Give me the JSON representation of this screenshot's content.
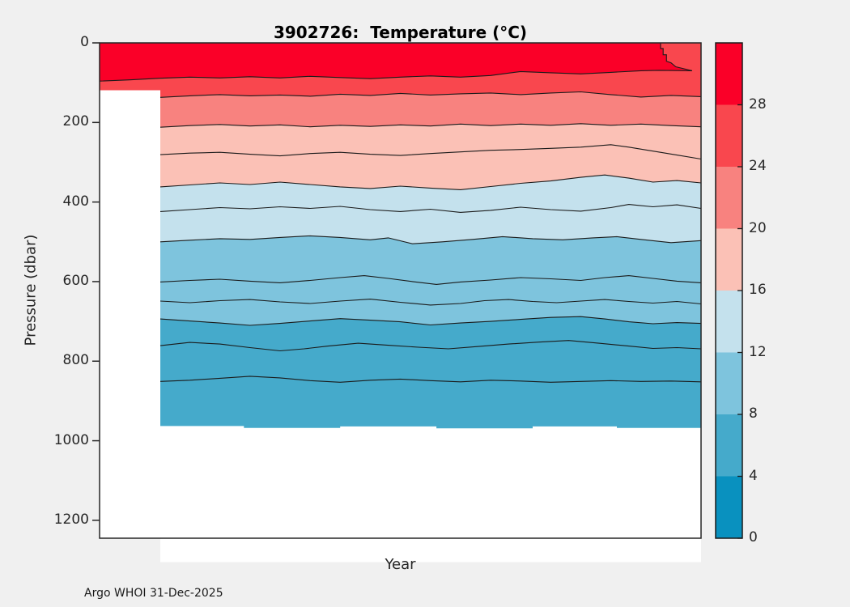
{
  "figure": {
    "background": "#f0f0f0",
    "title": "3902726:  Temperature (°C)",
    "footer": "Argo WHOI 31-Dec-2025"
  },
  "chart_data": {
    "type": "heatmap",
    "subtype": "filled_contour_time_depth_section",
    "title": "3902726:  Temperature (°C)",
    "xlabel": "Year",
    "ylabel": "Pressure (dbar)",
    "x_axis": {
      "tick_labels": []
    },
    "y_axis": {
      "ticks": [
        0,
        200,
        400,
        600,
        800,
        1000,
        1200
      ],
      "range_dbar": [
        0,
        1245
      ]
    },
    "colorbar": {
      "tick_labels": [
        "28",
        "24",
        "20",
        "16",
        "12",
        "8",
        "4",
        "0"
      ],
      "band_colors_top_to_bottom": [
        "#FA0028",
        "#F9474E",
        "#F8827F",
        "#FBC1B6",
        "#C4E1ED",
        "#7EC4DD",
        "#45AACB",
        "#0991BF"
      ],
      "level_step_c": 4,
      "range_c": [
        0,
        32
      ]
    },
    "line_color": "#1a1a1a",
    "axis_color": "#262626",
    "base_fill": "#45AACB",
    "no_data_region": {
      "left_notch_x_fraction": 0.101,
      "left_notch_below_dbar": 119,
      "profile_bottom_dbar": 965
    },
    "cut_28": [
      [
        0.9327,
        0
      ],
      [
        0.9327,
        14
      ],
      [
        0.937,
        14
      ],
      [
        0.937,
        30
      ],
      [
        0.9425,
        30
      ],
      [
        0.9425,
        46
      ],
      [
        0.95,
        50
      ],
      [
        0.958,
        60
      ],
      [
        0.985,
        70
      ]
    ],
    "bottom_edge": [
      [
        0.101,
        963
      ],
      [
        0.24,
        963
      ],
      [
        0.24,
        968
      ],
      [
        0.4,
        968
      ],
      [
        0.4,
        964
      ],
      [
        0.56,
        964
      ],
      [
        0.56,
        969
      ],
      [
        0.72,
        969
      ],
      [
        0.72,
        964
      ],
      [
        0.86,
        964
      ],
      [
        0.86,
        968
      ],
      [
        1.0,
        968
      ]
    ],
    "contours": [
      {
        "id": "c28",
        "level": 28,
        "fill_above": "#FA0028",
        "points": [
          [
            0,
            96
          ],
          [
            0.05,
            93
          ],
          [
            0.1,
            89
          ],
          [
            0.15,
            86
          ],
          [
            0.2,
            88
          ],
          [
            0.25,
            85
          ],
          [
            0.3,
            88
          ],
          [
            0.35,
            84
          ],
          [
            0.4,
            87
          ],
          [
            0.45,
            90
          ],
          [
            0.5,
            86
          ],
          [
            0.55,
            83
          ],
          [
            0.6,
            86
          ],
          [
            0.65,
            82
          ],
          [
            0.7,
            72
          ],
          [
            0.75,
            75
          ],
          [
            0.8,
            78
          ],
          [
            0.85,
            74
          ],
          [
            0.9,
            70
          ],
          [
            0.93,
            69
          ],
          [
            0.985,
            70
          ]
        ]
      },
      {
        "id": "c24",
        "level": 24,
        "fill_above": "#F9474E",
        "points": [
          [
            0.101,
            137
          ],
          [
            0.15,
            133
          ],
          [
            0.2,
            130
          ],
          [
            0.25,
            133
          ],
          [
            0.3,
            131
          ],
          [
            0.35,
            134
          ],
          [
            0.4,
            129
          ],
          [
            0.45,
            132
          ],
          [
            0.5,
            127
          ],
          [
            0.55,
            131
          ],
          [
            0.6,
            128
          ],
          [
            0.65,
            126
          ],
          [
            0.7,
            130
          ],
          [
            0.75,
            126
          ],
          [
            0.8,
            123
          ],
          [
            0.85,
            130
          ],
          [
            0.9,
            136
          ],
          [
            0.95,
            132
          ],
          [
            1.0,
            135
          ]
        ]
      },
      {
        "id": "c20",
        "level": 20,
        "fill_above": "#F8827F",
        "points": [
          [
            0.101,
            212
          ],
          [
            0.15,
            208
          ],
          [
            0.2,
            205
          ],
          [
            0.25,
            209
          ],
          [
            0.3,
            206
          ],
          [
            0.35,
            211
          ],
          [
            0.4,
            207
          ],
          [
            0.45,
            210
          ],
          [
            0.5,
            206
          ],
          [
            0.55,
            209
          ],
          [
            0.6,
            204
          ],
          [
            0.65,
            208
          ],
          [
            0.7,
            204
          ],
          [
            0.75,
            207
          ],
          [
            0.8,
            203
          ],
          [
            0.85,
            207
          ],
          [
            0.9,
            204
          ],
          [
            0.95,
            208
          ],
          [
            1.0,
            211
          ]
        ]
      },
      {
        "id": "i18",
        "level": null,
        "fill_above": null,
        "points": [
          [
            0.101,
            281
          ],
          [
            0.15,
            277
          ],
          [
            0.2,
            275
          ],
          [
            0.25,
            280
          ],
          [
            0.3,
            284
          ],
          [
            0.35,
            278
          ],
          [
            0.4,
            275
          ],
          [
            0.45,
            280
          ],
          [
            0.5,
            283
          ],
          [
            0.55,
            278
          ],
          [
            0.6,
            274
          ],
          [
            0.65,
            270
          ],
          [
            0.7,
            268
          ],
          [
            0.75,
            265
          ],
          [
            0.8,
            262
          ],
          [
            0.85,
            256
          ],
          [
            0.88,
            262
          ],
          [
            0.92,
            272
          ],
          [
            0.96,
            282
          ],
          [
            1.0,
            292
          ]
        ]
      },
      {
        "id": "c16",
        "level": 16,
        "fill_above": "#FBC1B6",
        "points": [
          [
            0.101,
            362
          ],
          [
            0.15,
            357
          ],
          [
            0.2,
            352
          ],
          [
            0.25,
            356
          ],
          [
            0.3,
            350
          ],
          [
            0.35,
            356
          ],
          [
            0.4,
            362
          ],
          [
            0.45,
            366
          ],
          [
            0.5,
            360
          ],
          [
            0.55,
            365
          ],
          [
            0.6,
            369
          ],
          [
            0.65,
            361
          ],
          [
            0.7,
            353
          ],
          [
            0.75,
            347
          ],
          [
            0.8,
            338
          ],
          [
            0.84,
            332
          ],
          [
            0.88,
            340
          ],
          [
            0.92,
            350
          ],
          [
            0.96,
            346
          ],
          [
            1.0,
            352
          ]
        ]
      },
      {
        "id": "i14",
        "level": null,
        "fill_above": null,
        "points": [
          [
            0.101,
            424
          ],
          [
            0.15,
            419
          ],
          [
            0.2,
            414
          ],
          [
            0.25,
            417
          ],
          [
            0.3,
            412
          ],
          [
            0.35,
            416
          ],
          [
            0.4,
            411
          ],
          [
            0.45,
            419
          ],
          [
            0.5,
            424
          ],
          [
            0.55,
            418
          ],
          [
            0.6,
            426
          ],
          [
            0.65,
            421
          ],
          [
            0.7,
            413
          ],
          [
            0.75,
            419
          ],
          [
            0.8,
            423
          ],
          [
            0.85,
            414
          ],
          [
            0.88,
            406
          ],
          [
            0.92,
            412
          ],
          [
            0.96,
            407
          ],
          [
            1.0,
            416
          ]
        ]
      },
      {
        "id": "c12",
        "level": 12,
        "fill_above": "#C4E1ED",
        "points": [
          [
            0.101,
            500
          ],
          [
            0.15,
            496
          ],
          [
            0.2,
            492
          ],
          [
            0.25,
            494
          ],
          [
            0.3,
            489
          ],
          [
            0.35,
            485
          ],
          [
            0.4,
            489
          ],
          [
            0.45,
            495
          ],
          [
            0.48,
            490
          ],
          [
            0.52,
            505
          ],
          [
            0.57,
            500
          ],
          [
            0.62,
            494
          ],
          [
            0.67,
            487
          ],
          [
            0.72,
            492
          ],
          [
            0.77,
            495
          ],
          [
            0.82,
            490
          ],
          [
            0.86,
            487
          ],
          [
            0.9,
            494
          ],
          [
            0.95,
            502
          ],
          [
            1.0,
            497
          ]
        ]
      },
      {
        "id": "i10",
        "level": null,
        "fill_above": null,
        "points": [
          [
            0.101,
            601
          ],
          [
            0.15,
            597
          ],
          [
            0.2,
            594
          ],
          [
            0.25,
            599
          ],
          [
            0.3,
            603
          ],
          [
            0.35,
            597
          ],
          [
            0.4,
            590
          ],
          [
            0.44,
            585
          ],
          [
            0.48,
            592
          ],
          [
            0.52,
            600
          ],
          [
            0.56,
            607
          ],
          [
            0.6,
            601
          ],
          [
            0.65,
            596
          ],
          [
            0.7,
            590
          ],
          [
            0.75,
            593
          ],
          [
            0.8,
            597
          ],
          [
            0.84,
            590
          ],
          [
            0.88,
            585
          ],
          [
            0.92,
            592
          ],
          [
            0.96,
            599
          ],
          [
            1.0,
            603
          ]
        ]
      },
      {
        "id": "i9",
        "level": null,
        "fill_above": null,
        "points": [
          [
            0.101,
            649
          ],
          [
            0.15,
            653
          ],
          [
            0.2,
            648
          ],
          [
            0.25,
            645
          ],
          [
            0.3,
            651
          ],
          [
            0.35,
            655
          ],
          [
            0.4,
            649
          ],
          [
            0.45,
            644
          ],
          [
            0.5,
            652
          ],
          [
            0.55,
            659
          ],
          [
            0.6,
            655
          ],
          [
            0.64,
            648
          ],
          [
            0.68,
            645
          ],
          [
            0.72,
            650
          ],
          [
            0.76,
            653
          ],
          [
            0.8,
            649
          ],
          [
            0.84,
            645
          ],
          [
            0.88,
            650
          ],
          [
            0.92,
            654
          ],
          [
            0.96,
            650
          ],
          [
            1.0,
            656
          ]
        ]
      },
      {
        "id": "c8",
        "level": 8,
        "fill_above": "#7EC4DD",
        "points": [
          [
            0.101,
            694
          ],
          [
            0.15,
            699
          ],
          [
            0.2,
            704
          ],
          [
            0.25,
            710
          ],
          [
            0.3,
            705
          ],
          [
            0.35,
            699
          ],
          [
            0.4,
            693
          ],
          [
            0.45,
            697
          ],
          [
            0.5,
            701
          ],
          [
            0.55,
            709
          ],
          [
            0.6,
            704
          ],
          [
            0.65,
            700
          ],
          [
            0.7,
            695
          ],
          [
            0.75,
            690
          ],
          [
            0.8,
            688
          ],
          [
            0.84,
            694
          ],
          [
            0.88,
            701
          ],
          [
            0.92,
            706
          ],
          [
            0.96,
            703
          ],
          [
            1.0,
            705
          ]
        ]
      },
      {
        "id": "i6",
        "level": null,
        "fill_above": null,
        "points": [
          [
            0.101,
            761
          ],
          [
            0.15,
            753
          ],
          [
            0.2,
            757
          ],
          [
            0.25,
            766
          ],
          [
            0.3,
            774
          ],
          [
            0.34,
            769
          ],
          [
            0.38,
            762
          ],
          [
            0.43,
            755
          ],
          [
            0.48,
            760
          ],
          [
            0.53,
            765
          ],
          [
            0.58,
            769
          ],
          [
            0.63,
            763
          ],
          [
            0.68,
            757
          ],
          [
            0.73,
            752
          ],
          [
            0.78,
            748
          ],
          [
            0.83,
            755
          ],
          [
            0.88,
            762
          ],
          [
            0.92,
            768
          ],
          [
            0.96,
            766
          ],
          [
            1.0,
            769
          ]
        ]
      },
      {
        "id": "i5",
        "level": null,
        "fill_above": null,
        "points": [
          [
            0.101,
            851
          ],
          [
            0.15,
            848
          ],
          [
            0.2,
            843
          ],
          [
            0.25,
            838
          ],
          [
            0.3,
            842
          ],
          [
            0.35,
            849
          ],
          [
            0.4,
            853
          ],
          [
            0.45,
            848
          ],
          [
            0.5,
            845
          ],
          [
            0.55,
            849
          ],
          [
            0.6,
            852
          ],
          [
            0.65,
            848
          ],
          [
            0.7,
            850
          ],
          [
            0.75,
            853
          ],
          [
            0.8,
            851
          ],
          [
            0.85,
            849
          ],
          [
            0.9,
            851
          ],
          [
            0.95,
            850
          ],
          [
            1.0,
            852
          ]
        ]
      }
    ]
  }
}
